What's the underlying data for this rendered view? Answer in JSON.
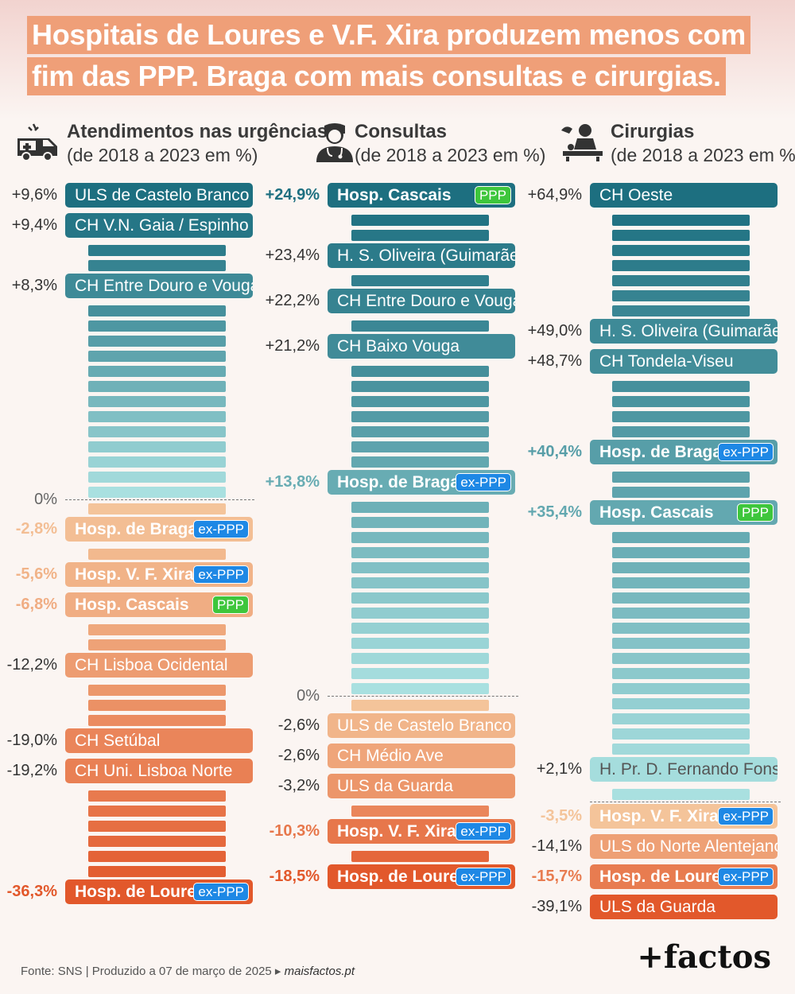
{
  "title_lines": [
    "Hospitais de Loures e V.F. Xira produzem menos com",
    "fim das PPP. Braga com mais consultas e cirurgias."
  ],
  "headers": {
    "urg_title": "Atendimentos nas urgências",
    "urg_sub": "(de 2018 a 2023 em %)",
    "cons_title": "Consultas",
    "cons_sub": "(de 2018 a 2023 em %)",
    "cir_title": "Cirurgias",
    "cir_sub": "(de 2018 a 2023 em %)"
  },
  "icons": [
    "ambulance-icon",
    "doctor-icon",
    "surgeon-icon"
  ],
  "zero_label": "0%",
  "footer": {
    "source": "Fonte: SNS | Produzido a 07 de março de 2025 ▸",
    "site": "maisfactos.pt"
  },
  "logo": "+factos",
  "colors": {
    "pos_dark": "#1d6f80",
    "pos_light": "#a9e0e0",
    "neg_light": "#f4c49a",
    "neg_dark": "#e2582b",
    "ppp_tag": "#3ec63c",
    "expp_tag": "#1e88e5",
    "title_bg": "#ef9f78"
  },
  "chart_data": [
    {
      "type": "bar",
      "title": "Atendimentos nas urgências",
      "subtitle": "(de 2018 a 2023 em %)",
      "unlabeled_positive_steps": 15,
      "unlabeled_negative_steps": 13,
      "labeled": [
        {
          "name": "ULS de Castelo Branco",
          "value": 9.6,
          "label": "+9,6%"
        },
        {
          "name": "CH  V.N. Gaia / Espinho",
          "value": 9.4,
          "label": "+9,4%"
        },
        {
          "name": "CH Entre Douro e Vouga",
          "value": 8.3,
          "label": "+8,3%"
        },
        {
          "name": "Hosp. de Braga",
          "value": -2.8,
          "label": "-2,8%",
          "tag": "ex-PPP",
          "highlight": true
        },
        {
          "name": "Hosp. V. F. Xira",
          "value": -5.6,
          "label": "-5,6%",
          "tag": "ex-PPP",
          "highlight": true
        },
        {
          "name": "Hosp. Cascais",
          "value": -6.8,
          "label": "-6,8%",
          "tag": "PPP",
          "highlight": true
        },
        {
          "name": "CH Lisboa Ocidental",
          "value": -12.2,
          "label": "-12,2%"
        },
        {
          "name": "CH Setúbal",
          "value": -19.0,
          "label": "-19,0%"
        },
        {
          "name": "CH Uni. Lisboa Norte",
          "value": -19.2,
          "label": "-19,2%"
        },
        {
          "name": "Hosp. de Loures",
          "value": -36.3,
          "label": "-36,3%",
          "tag": "ex-PPP",
          "highlight": true
        }
      ]
    },
    {
      "type": "bar",
      "title": "Consultas",
      "subtitle": "(de 2018 a 2023 em %)",
      "unlabeled_positive_steps": 24,
      "unlabeled_negative_steps": 3,
      "labeled": [
        {
          "name": "Hosp. Cascais",
          "value": 24.9,
          "label": "+24,9%",
          "tag": "PPP",
          "highlight": true
        },
        {
          "name": "H. S. Oliveira (Guimarães)",
          "value": 23.4,
          "label": "+23,4%"
        },
        {
          "name": "CH Entre Douro e Vouga",
          "value": 22.2,
          "label": "+22,2%"
        },
        {
          "name": "CH Baixo Vouga",
          "value": 21.2,
          "label": "+21,2%"
        },
        {
          "name": "Hosp. de Braga",
          "value": 13.8,
          "label": "+13,8%",
          "tag": "ex-PPP",
          "highlight": true
        },
        {
          "name": "ULS de Castelo Branco",
          "value": -2.6,
          "label": "-2,6%"
        },
        {
          "name": "CH Médio Ave",
          "value": -2.6,
          "label": "-2,6%"
        },
        {
          "name": "ULS da Guarda",
          "value": -3.2,
          "label": "-3,2%"
        },
        {
          "name": "Hosp. V. F. Xira",
          "value": -10.3,
          "label": "-10,3%",
          "tag": "ex-PPP",
          "highlight": true
        },
        {
          "name": "Hosp. de Loures",
          "value": -18.5,
          "label": "-18,5%",
          "tag": "ex-PPP",
          "highlight": true
        }
      ]
    },
    {
      "type": "bar",
      "title": "Cirurgias",
      "subtitle": "(de 2018 a 2023 em %)",
      "unlabeled_positive_steps": 29,
      "unlabeled_negative_steps": 0,
      "labeled": [
        {
          "name": "CH Oeste",
          "value": 64.9,
          "label": "+64,9%"
        },
        {
          "name": "H. S. Oliveira (Guimarães)",
          "value": 49.0,
          "label": "+49,0%"
        },
        {
          "name": "CH Tondela-Viseu",
          "value": 48.7,
          "label": "+48,7%"
        },
        {
          "name": "Hosp. de Braga",
          "value": 40.4,
          "label": "+40,4%",
          "tag": "ex-PPP",
          "highlight": true
        },
        {
          "name": "Hosp. Cascais",
          "value": 35.4,
          "label": "+35,4%",
          "tag": "PPP",
          "highlight": true
        },
        {
          "name": "H. Pr. D. Fernando Fonseca",
          "value": 2.1,
          "label": "+2,1%"
        },
        {
          "name": "Hosp. V. F. Xira",
          "value": -3.5,
          "label": "-3,5%",
          "tag": "ex-PPP",
          "highlight": true
        },
        {
          "name": "ULS do Norte Alentejano",
          "value": -14.1,
          "label": "-14,1%"
        },
        {
          "name": "Hosp. de Loures",
          "value": -15.7,
          "label": "-15,7%",
          "tag": "ex-PPP",
          "highlight": true
        },
        {
          "name": "ULS da Guarda",
          "value": -39.1,
          "label": "-39,1%"
        }
      ]
    }
  ]
}
